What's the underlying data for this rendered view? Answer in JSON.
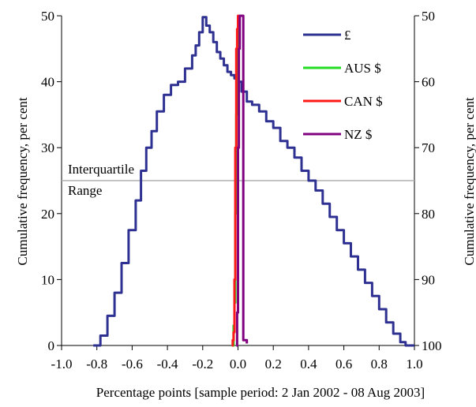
{
  "chart_data": {
    "type": "line",
    "xlabel": "Percentage points [sample period: 2 Jan 2002 - 08 Aug 2003]",
    "ylabel_left": "Cumulative frequency, per cent",
    "ylabel_right": "Cumulative frequency, per cent",
    "xlim": [
      -1.0,
      1.0
    ],
    "ylim_left": [
      0,
      50
    ],
    "ylim_right": [
      100,
      50
    ],
    "x_ticks": [
      "-1.0",
      "-0.8",
      "-0.6",
      "-0.4",
      "-0.2",
      "0.0",
      "0.2",
      "0.4",
      "0.6",
      "0.8",
      "1.0"
    ],
    "y_ticks_left": [
      "0",
      "10",
      "20",
      "30",
      "40",
      "50"
    ],
    "y_ticks_right": [
      "100",
      "90",
      "80",
      "70",
      "60",
      "50"
    ],
    "reference_line": {
      "y": 25,
      "label_line1": "Interquartile",
      "label_line2": "Range",
      "color": "#b0b0b0"
    },
    "legend_position": "top-right",
    "series": [
      {
        "name": "£",
        "color": "#2e3192",
        "x": [
          -0.82,
          -0.78,
          -0.74,
          -0.7,
          -0.66,
          -0.62,
          -0.58,
          -0.55,
          -0.52,
          -0.49,
          -0.46,
          -0.42,
          -0.38,
          -0.34,
          -0.3,
          -0.26,
          -0.24,
          -0.22,
          -0.2,
          -0.18,
          -0.16,
          -0.14,
          -0.12,
          -0.1,
          -0.08,
          -0.06,
          -0.04,
          -0.02,
          0.0,
          0.02,
          0.05,
          0.08,
          0.12,
          0.16,
          0.2,
          0.24,
          0.28,
          0.32,
          0.36,
          0.4,
          0.44,
          0.48,
          0.52,
          0.56,
          0.6,
          0.64,
          0.68,
          0.72,
          0.76,
          0.8,
          0.84,
          0.88,
          0.92,
          0.95,
          0.98,
          1.0
        ],
        "y": [
          0.0,
          1.5,
          4.5,
          8.0,
          12.5,
          17.5,
          22.0,
          26.5,
          30.0,
          32.5,
          35.5,
          38.0,
          39.5,
          40.0,
          42.0,
          44.0,
          45.5,
          47.5,
          49.8,
          48.5,
          47.5,
          46.0,
          44.5,
          43.5,
          42.5,
          41.5,
          41.0,
          40.5,
          40.0,
          38.5,
          37.0,
          36.5,
          35.5,
          34.0,
          33.0,
          31.0,
          30.0,
          28.5,
          26.5,
          25.0,
          23.5,
          21.5,
          19.5,
          17.5,
          15.5,
          13.5,
          11.5,
          9.5,
          7.5,
          5.5,
          3.5,
          1.8,
          0.5,
          0.0,
          0.0,
          0.0
        ]
      },
      {
        "name": "AUS $",
        "color": "#22dd22",
        "x": [
          -0.03,
          -0.025,
          -0.02,
          -0.015,
          -0.01,
          -0.005,
          0.0
        ],
        "y": [
          0.0,
          3.0,
          6.5,
          20.0,
          35.0,
          45.0,
          50.0
        ]
      },
      {
        "name": "CAN $",
        "color": "#ff1a1a",
        "x": [
          -0.035,
          -0.03,
          -0.025,
          -0.02,
          -0.015,
          -0.01,
          -0.005,
          0.0,
          0.005,
          0.01
        ],
        "y": [
          0.0,
          0.8,
          2.0,
          10.0,
          30.0,
          45.0,
          48.0,
          50.0,
          50.0,
          50.0
        ]
      },
      {
        "name": "NZ $",
        "color": "#800080",
        "x": [
          -0.01,
          -0.005,
          0.0,
          0.0,
          0.005,
          0.01,
          0.03,
          0.05
        ],
        "y": [
          0.0,
          5.0,
          12.0,
          30.0,
          45.0,
          50.0,
          0.8,
          0.3
        ]
      }
    ]
  }
}
